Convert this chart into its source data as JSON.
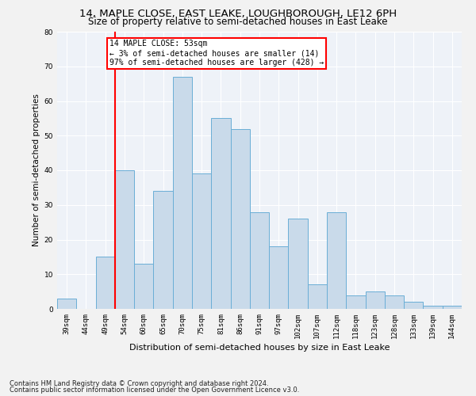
{
  "title1": "14, MAPLE CLOSE, EAST LEAKE, LOUGHBOROUGH, LE12 6PH",
  "title2": "Size of property relative to semi-detached houses in East Leake",
  "xlabel": "Distribution of semi-detached houses by size in East Leake",
  "ylabel": "Number of semi-detached properties",
  "categories": [
    "39sqm",
    "44sqm",
    "49sqm",
    "54sqm",
    "60sqm",
    "65sqm",
    "70sqm",
    "75sqm",
    "81sqm",
    "86sqm",
    "91sqm",
    "97sqm",
    "102sqm",
    "107sqm",
    "112sqm",
    "118sqm",
    "123sqm",
    "128sqm",
    "133sqm",
    "139sqm",
    "144sqm"
  ],
  "values": [
    3,
    0,
    15,
    40,
    13,
    34,
    67,
    39,
    55,
    52,
    28,
    18,
    26,
    7,
    28,
    4,
    5,
    4,
    2,
    1,
    1
  ],
  "bar_color": "#c9daea",
  "bar_edge_color": "#6aaed6",
  "red_line_x": 2.5,
  "annotation_text": "14 MAPLE CLOSE: 53sqm\n← 3% of semi-detached houses are smaller (14)\n97% of semi-detached houses are larger (428) →",
  "footnote1": "Contains HM Land Registry data © Crown copyright and database right 2024.",
  "footnote2": "Contains public sector information licensed under the Open Government Licence v3.0.",
  "ylim": [
    0,
    80
  ],
  "yticks": [
    0,
    10,
    20,
    30,
    40,
    50,
    60,
    70,
    80
  ],
  "background_color": "#eef2f8",
  "grid_color": "#ffffff",
  "title1_fontsize": 9.5,
  "title2_fontsize": 8.5,
  "xlabel_fontsize": 8,
  "ylabel_fontsize": 7.5,
  "tick_fontsize": 6.5,
  "annot_fontsize": 7
}
